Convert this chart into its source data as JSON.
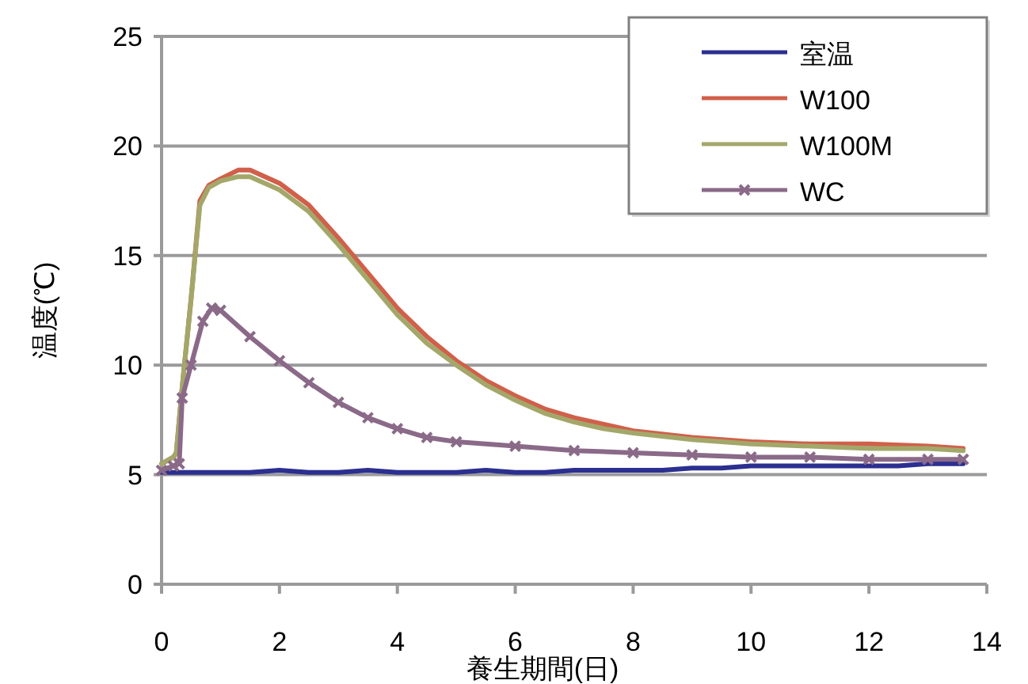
{
  "chart_data": {
    "type": "line",
    "xlabel": "養生期間(日)",
    "ylabel": "温度(℃)",
    "xlim": [
      0,
      14
    ],
    "xticks": [
      0,
      2,
      4,
      6,
      8,
      10,
      12,
      14
    ],
    "ylim": [
      0,
      25
    ],
    "yticks": [
      0,
      5,
      10,
      15,
      20,
      25
    ],
    "grid": "y",
    "legend": "top right",
    "line_style": "solid",
    "series": [
      {
        "name": "室温",
        "color": "#2b2f8f",
        "marker": "none",
        "x": [
          0,
          0.5,
          1,
          1.5,
          2,
          2.5,
          3,
          3.5,
          4,
          4.5,
          5,
          5.5,
          6,
          6.5,
          7,
          7.5,
          8,
          8.5,
          9,
          9.5,
          10,
          10.5,
          11,
          11.5,
          12,
          12.5,
          13,
          13.6
        ],
        "values": [
          5.1,
          5.1,
          5.1,
          5.1,
          5.2,
          5.1,
          5.1,
          5.2,
          5.1,
          5.1,
          5.1,
          5.2,
          5.1,
          5.1,
          5.2,
          5.2,
          5.2,
          5.2,
          5.3,
          5.3,
          5.4,
          5.4,
          5.4,
          5.4,
          5.4,
          5.4,
          5.5,
          5.5
        ]
      },
      {
        "name": "W100",
        "color": "#d0604a",
        "marker": "none",
        "x": [
          0,
          0.2,
          0.25,
          0.35,
          0.5,
          0.65,
          0.8,
          1,
          1.3,
          1.5,
          2,
          2.5,
          3,
          3.5,
          4,
          4.5,
          5,
          5.5,
          6,
          6.5,
          7,
          7.5,
          8,
          9,
          10,
          11,
          12,
          13,
          13.6
        ],
        "values": [
          5.5,
          5.8,
          6,
          9,
          13,
          17.5,
          18.2,
          18.5,
          18.9,
          18.9,
          18.3,
          17.3,
          15.8,
          14.2,
          12.6,
          11.3,
          10.2,
          9.3,
          8.6,
          8,
          7.6,
          7.3,
          7,
          6.7,
          6.5,
          6.4,
          6.4,
          6.3,
          6.2
        ]
      },
      {
        "name": "W100M",
        "color": "#a3a86a",
        "marker": "none",
        "x": [
          0,
          0.2,
          0.25,
          0.35,
          0.5,
          0.65,
          0.8,
          1,
          1.3,
          1.5,
          2,
          2.5,
          3,
          3.5,
          4,
          4.5,
          5,
          5.5,
          6,
          6.5,
          7,
          7.5,
          8,
          9,
          10,
          11,
          12,
          13,
          13.6
        ],
        "values": [
          5.5,
          5.8,
          6,
          9,
          13,
          17.3,
          18.1,
          18.4,
          18.6,
          18.6,
          18,
          17,
          15.5,
          13.9,
          12.3,
          11,
          10,
          9.1,
          8.4,
          7.8,
          7.4,
          7.1,
          6.9,
          6.6,
          6.4,
          6.3,
          6.2,
          6.2,
          6.1
        ]
      },
      {
        "name": "WC",
        "color": "#8a6a88",
        "marker": "cross",
        "x": [
          0,
          0.2,
          0.3,
          0.35,
          0.5,
          0.7,
          0.85,
          1,
          1.5,
          2,
          2.5,
          3,
          3.5,
          4,
          4.5,
          5,
          6,
          7,
          8,
          9,
          10,
          11,
          12,
          13,
          13.6
        ],
        "values": [
          5.2,
          5.4,
          5.5,
          8.5,
          10,
          12,
          12.6,
          12.5,
          11.3,
          10.2,
          9.2,
          8.3,
          7.6,
          7.1,
          6.7,
          6.5,
          6.3,
          6.1,
          6,
          5.9,
          5.8,
          5.8,
          5.7,
          5.7,
          5.7
        ]
      }
    ]
  }
}
